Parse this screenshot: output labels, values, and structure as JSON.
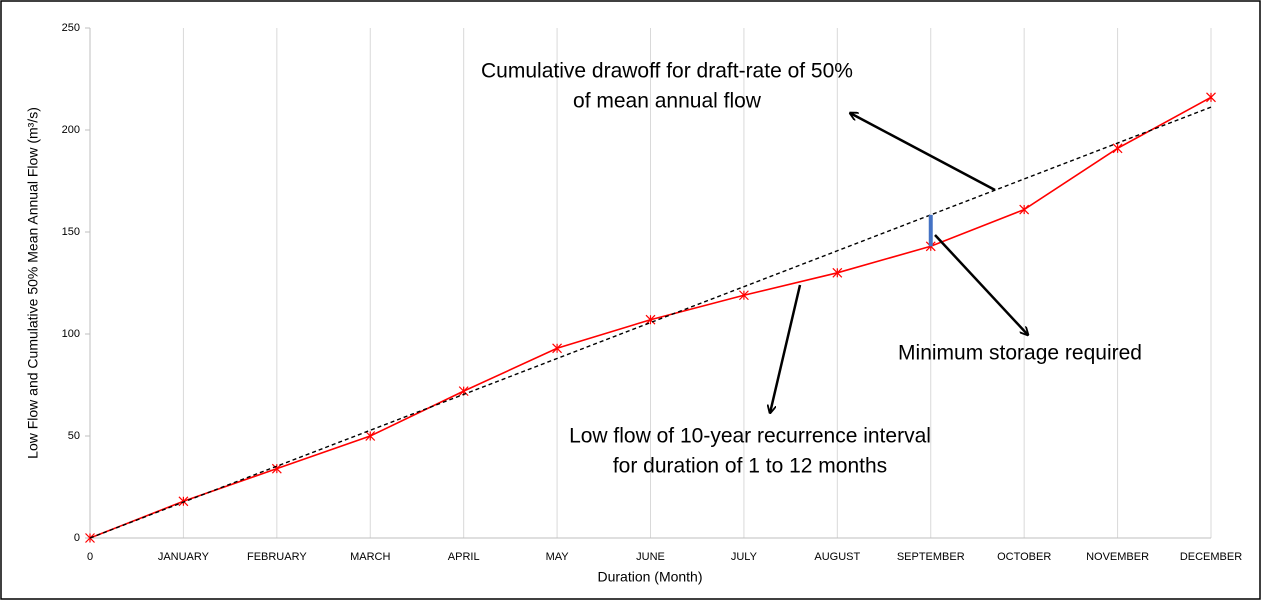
{
  "chart_data": {
    "type": "line",
    "x_label": "Duration (Month)",
    "y_label": "Low Flow and Cumulative 50% Mean Annual Flow (m³/s)",
    "categories": [
      "0",
      "JANUARY",
      "FEBRUARY",
      "MARCH",
      "APRIL",
      "MAY",
      "JUNE",
      "JULY",
      "AUGUST",
      "SEPTEMBER",
      "OCTOBER",
      "NOVEMBER",
      "DECEMBER"
    ],
    "series": [
      {
        "color": "#ff0000",
        "dashed": false,
        "marker": "asterisk",
        "values": [
          0,
          18,
          34,
          50,
          72,
          93,
          107,
          119,
          130,
          143,
          161,
          191,
          216
        ]
      },
      {
        "color": "#000000",
        "dashed": true,
        "marker": "none",
        "values": [
          0,
          17.6,
          35.2,
          52.8,
          70.4,
          88,
          105.6,
          123.2,
          140.8,
          158.4,
          176,
          193.6,
          211.2
        ]
      }
    ],
    "storage_marker": {
      "category_index": 9,
      "color": "#4472c4"
    },
    "ylim": [
      0,
      250
    ],
    "yticks": [
      0,
      50,
      100,
      150,
      200,
      250
    ],
    "vertical_grid": true,
    "annotations": [
      {
        "lines": [
          "Cumulative drawoff for draft-rate of 50%",
          "of mean annual flow"
        ]
      },
      {
        "lines": [
          "Minimum storage required"
        ]
      },
      {
        "lines": [
          "Low flow of 10-year recurrence interval",
          "for duration of 1 to 12 months"
        ]
      }
    ]
  }
}
